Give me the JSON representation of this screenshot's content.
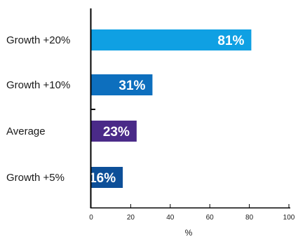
{
  "chart_data": {
    "type": "bar",
    "orientation": "horizontal",
    "categories": [
      "Growth +20%",
      "Growth +10%",
      "Average",
      "Growth +5%"
    ],
    "values": [
      81,
      31,
      23,
      16
    ],
    "value_labels": [
      "81%",
      "31%",
      "23%",
      "16%"
    ],
    "colors": [
      "#0fa0e3",
      "#0d6fbe",
      "#4a2a88",
      "#0d4f98"
    ],
    "xlabel": "%",
    "xlim": [
      0,
      100
    ],
    "xticks": [
      0,
      20,
      40,
      60,
      80,
      100
    ],
    "grid": false,
    "legend": "none"
  }
}
